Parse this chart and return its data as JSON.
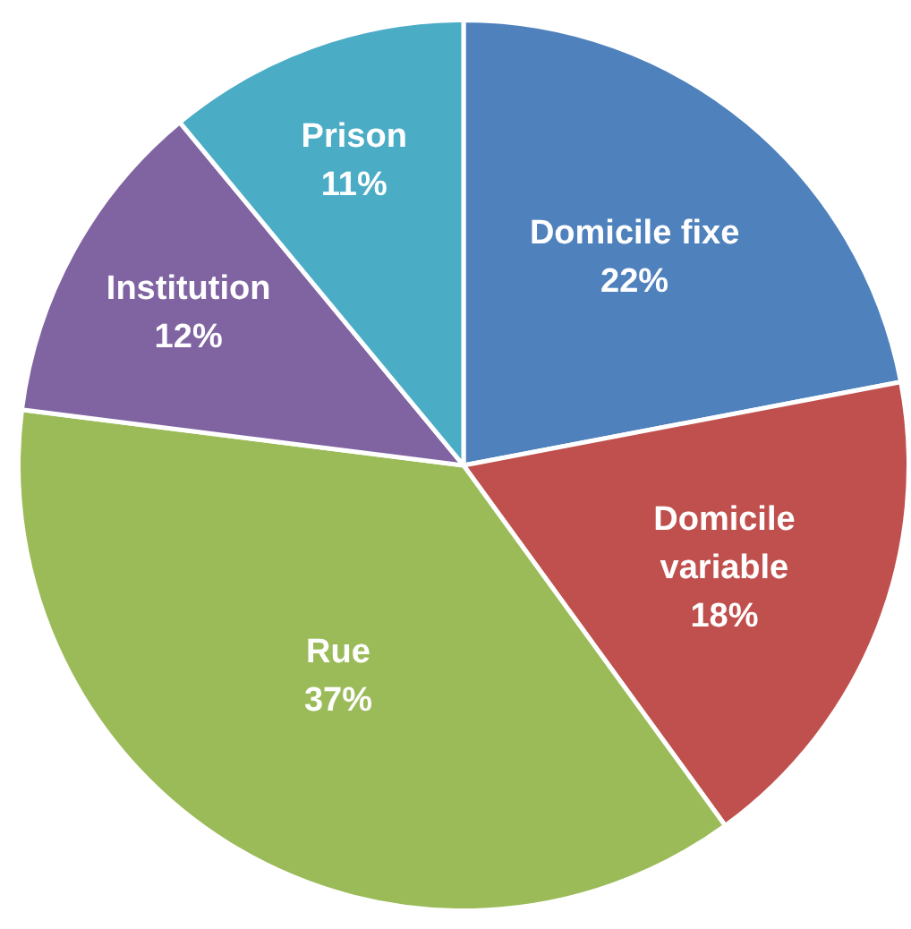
{
  "chart_data": {
    "type": "pie",
    "categories": [
      "Domicile fixe",
      "Domicile variable",
      "Rue",
      "Institution",
      "Prison"
    ],
    "values": [
      22,
      18,
      37,
      12,
      11
    ],
    "value_labels": [
      "22%",
      "18%",
      "37%",
      "12%",
      "11%"
    ],
    "colors": [
      "#4f81bd",
      "#c0504d",
      "#9bbb59",
      "#8064a2",
      "#4bacc6"
    ]
  }
}
